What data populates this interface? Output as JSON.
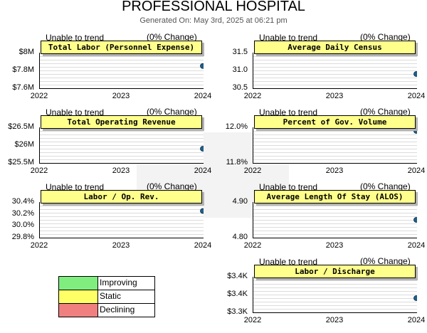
{
  "header": {
    "title": "PROFESSIONAL HOSPITAL",
    "generated": "Generated On: May 3rd, 2025 at 06:21 pm"
  },
  "legend": [
    {
      "label": "Improving",
      "color": "#7fee7f"
    },
    {
      "label": "Static",
      "color": "#ffff66"
    },
    {
      "label": "Declining",
      "color": "#f08080"
    }
  ],
  "chart_data": [
    {
      "type": "scatter",
      "title": "Total Labor (Personnel Expense)",
      "status": "Unable to trend",
      "change": "(0% Change)",
      "categories": [
        "2022",
        "2023",
        "2024"
      ],
      "yticks": [
        "$8M",
        "$7.8M",
        "$7.6M"
      ],
      "ylim": [
        7.6,
        8.0
      ],
      "points": [
        {
          "x": "2024",
          "y": 7.85
        }
      ]
    },
    {
      "type": "scatter",
      "title": "Average Daily Census",
      "status": "Unable to trend",
      "change": "(0% Change)",
      "categories": [
        "2022",
        "2023",
        "2024"
      ],
      "yticks": [
        "31.5",
        "31.0",
        "30.5"
      ],
      "ylim": [
        30.5,
        31.5
      ],
      "points": [
        {
          "x": "2024",
          "y": 30.9
        }
      ]
    },
    {
      "type": "scatter",
      "title": "Total Operating Revenue",
      "status": "Unable to trend",
      "change": "(0% Change)",
      "categories": [
        "2022",
        "2023",
        "2024"
      ],
      "yticks": [
        "$26.5M",
        "$26M",
        "$25.5M"
      ],
      "ylim": [
        25.5,
        26.5
      ],
      "points": [
        {
          "x": "2024",
          "y": 25.9
        }
      ]
    },
    {
      "type": "scatter",
      "title": "Percent of Gov. Volume",
      "status": "Unable to trend",
      "change": "(0% Change)",
      "categories": [
        "2022",
        "2023",
        "2024"
      ],
      "yticks": [
        "12.0%",
        "11.8%"
      ],
      "ylim": [
        11.8,
        12.0
      ],
      "points": [
        {
          "x": "2024",
          "y": 11.98
        }
      ]
    },
    {
      "type": "scatter",
      "title": "Labor / Op. Rev.",
      "status": "Unable to trend",
      "change": "(0% Change)",
      "categories": [
        "2022",
        "2023",
        "2024"
      ],
      "yticks": [
        "30.4%",
        "30.2%",
        "30.0%",
        "29.8%"
      ],
      "ylim": [
        29.8,
        30.4
      ],
      "points": [
        {
          "x": "2024",
          "y": 30.25
        }
      ]
    },
    {
      "type": "scatter",
      "title": "Average Length Of Stay (ALOS)",
      "status": "Unable to trend",
      "change": "(0% Change)",
      "categories": [
        "2022",
        "2023",
        "2024"
      ],
      "yticks": [
        "4.90",
        "4.80"
      ],
      "ylim": [
        4.8,
        4.9
      ],
      "points": [
        {
          "x": "2024",
          "y": 4.85
        }
      ]
    },
    {
      "type": "scatter",
      "title": "Labor / Discharge",
      "status": "Unable to trend",
      "change": "(0% Change)",
      "categories": [
        "2022",
        "2023",
        "2024"
      ],
      "yticks": [
        "$3.4K",
        "$3.4K",
        "$3.3K"
      ],
      "ylim": [
        3.3,
        3.4
      ],
      "points": [
        {
          "x": "2024",
          "y": 3.34
        }
      ]
    }
  ]
}
